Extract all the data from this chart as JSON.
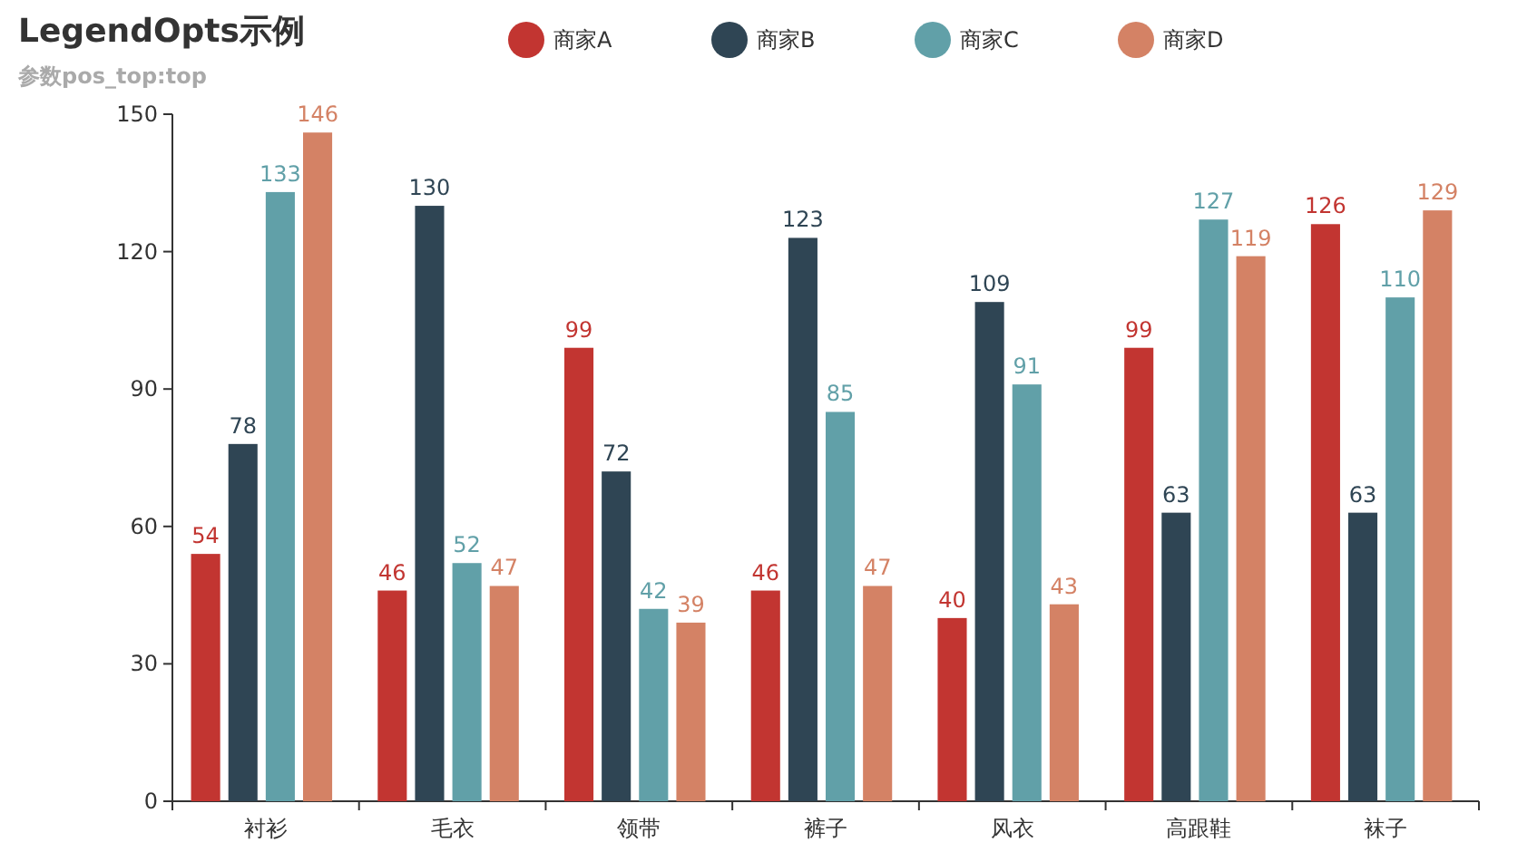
{
  "chart_data": {
    "type": "bar",
    "title": "LegendOpts示例",
    "subtitle": "参数pos_top:top",
    "categories": [
      "衬衫",
      "毛衣",
      "领带",
      "裤子",
      "风衣",
      "高跟鞋",
      "袜子"
    ],
    "series": [
      {
        "name": "商家A",
        "color": "#c23531",
        "values": [
          54,
          46,
          99,
          46,
          40,
          99,
          126
        ]
      },
      {
        "name": "商家B",
        "color": "#2f4554",
        "values": [
          78,
          130,
          72,
          123,
          109,
          63,
          63
        ]
      },
      {
        "name": "商家C",
        "color": "#61a0a8",
        "values": [
          133,
          52,
          42,
          85,
          91,
          127,
          110
        ]
      },
      {
        "name": "商家D",
        "color": "#d48265",
        "values": [
          146,
          47,
          39,
          47,
          43,
          119,
          129
        ]
      }
    ],
    "ylim": [
      0,
      150
    ],
    "yticks": [
      0,
      30,
      60,
      90,
      120,
      150
    ],
    "grid": false,
    "legend": "top",
    "data_labels": true
  }
}
